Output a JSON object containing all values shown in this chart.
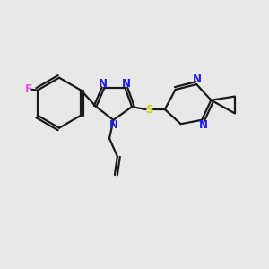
{
  "bg_color": "#e8e8e8",
  "bond_color": "#1a1a1a",
  "N_color": "#1a1aff",
  "S_color": "#cccc00",
  "F_color": "#ff44ff",
  "line_width": 1.6,
  "font_size": 8.5,
  "fig_size": [
    3.0,
    3.0
  ],
  "dpi": 100,
  "xlim": [
    0,
    10
  ],
  "ylim": [
    0,
    10
  ]
}
